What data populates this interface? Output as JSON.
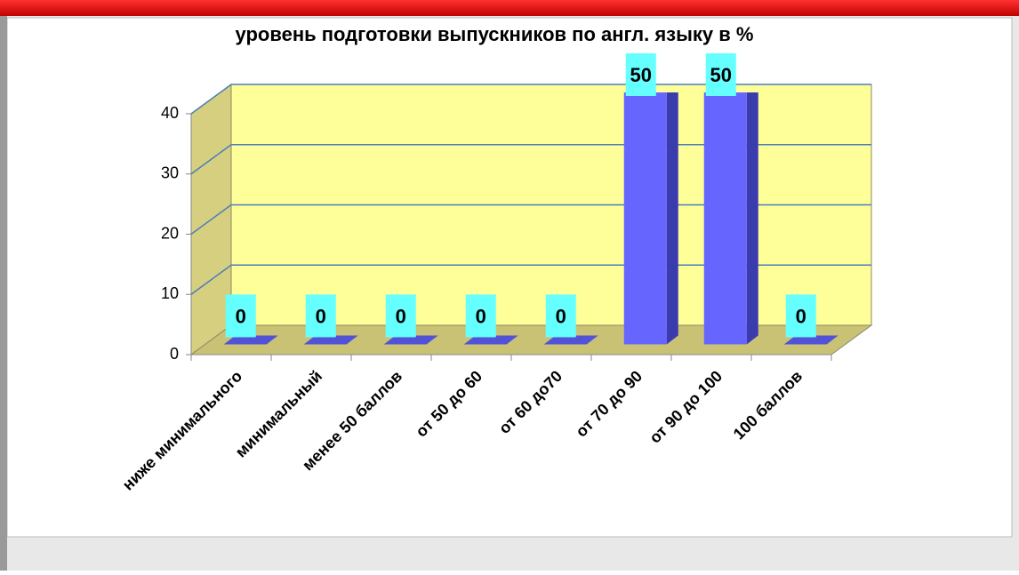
{
  "chart_data": {
    "type": "bar3d",
    "title": "уровень  подготовки  выпускников  по  англ. языку  в  %",
    "categories": [
      "ниже минимального",
      "минимальный",
      "менее 50 баллов",
      "от 50 до 60",
      "от 60 до70",
      "от 70 до 90",
      "от 90 до 100",
      "100 баллов"
    ],
    "values": [
      0,
      0,
      0,
      0,
      0,
      50,
      50,
      0
    ],
    "color": "#6666ff",
    "ylim": [
      0,
      40
    ],
    "yticks": [
      0,
      10,
      20,
      30,
      40
    ],
    "grid": true
  }
}
